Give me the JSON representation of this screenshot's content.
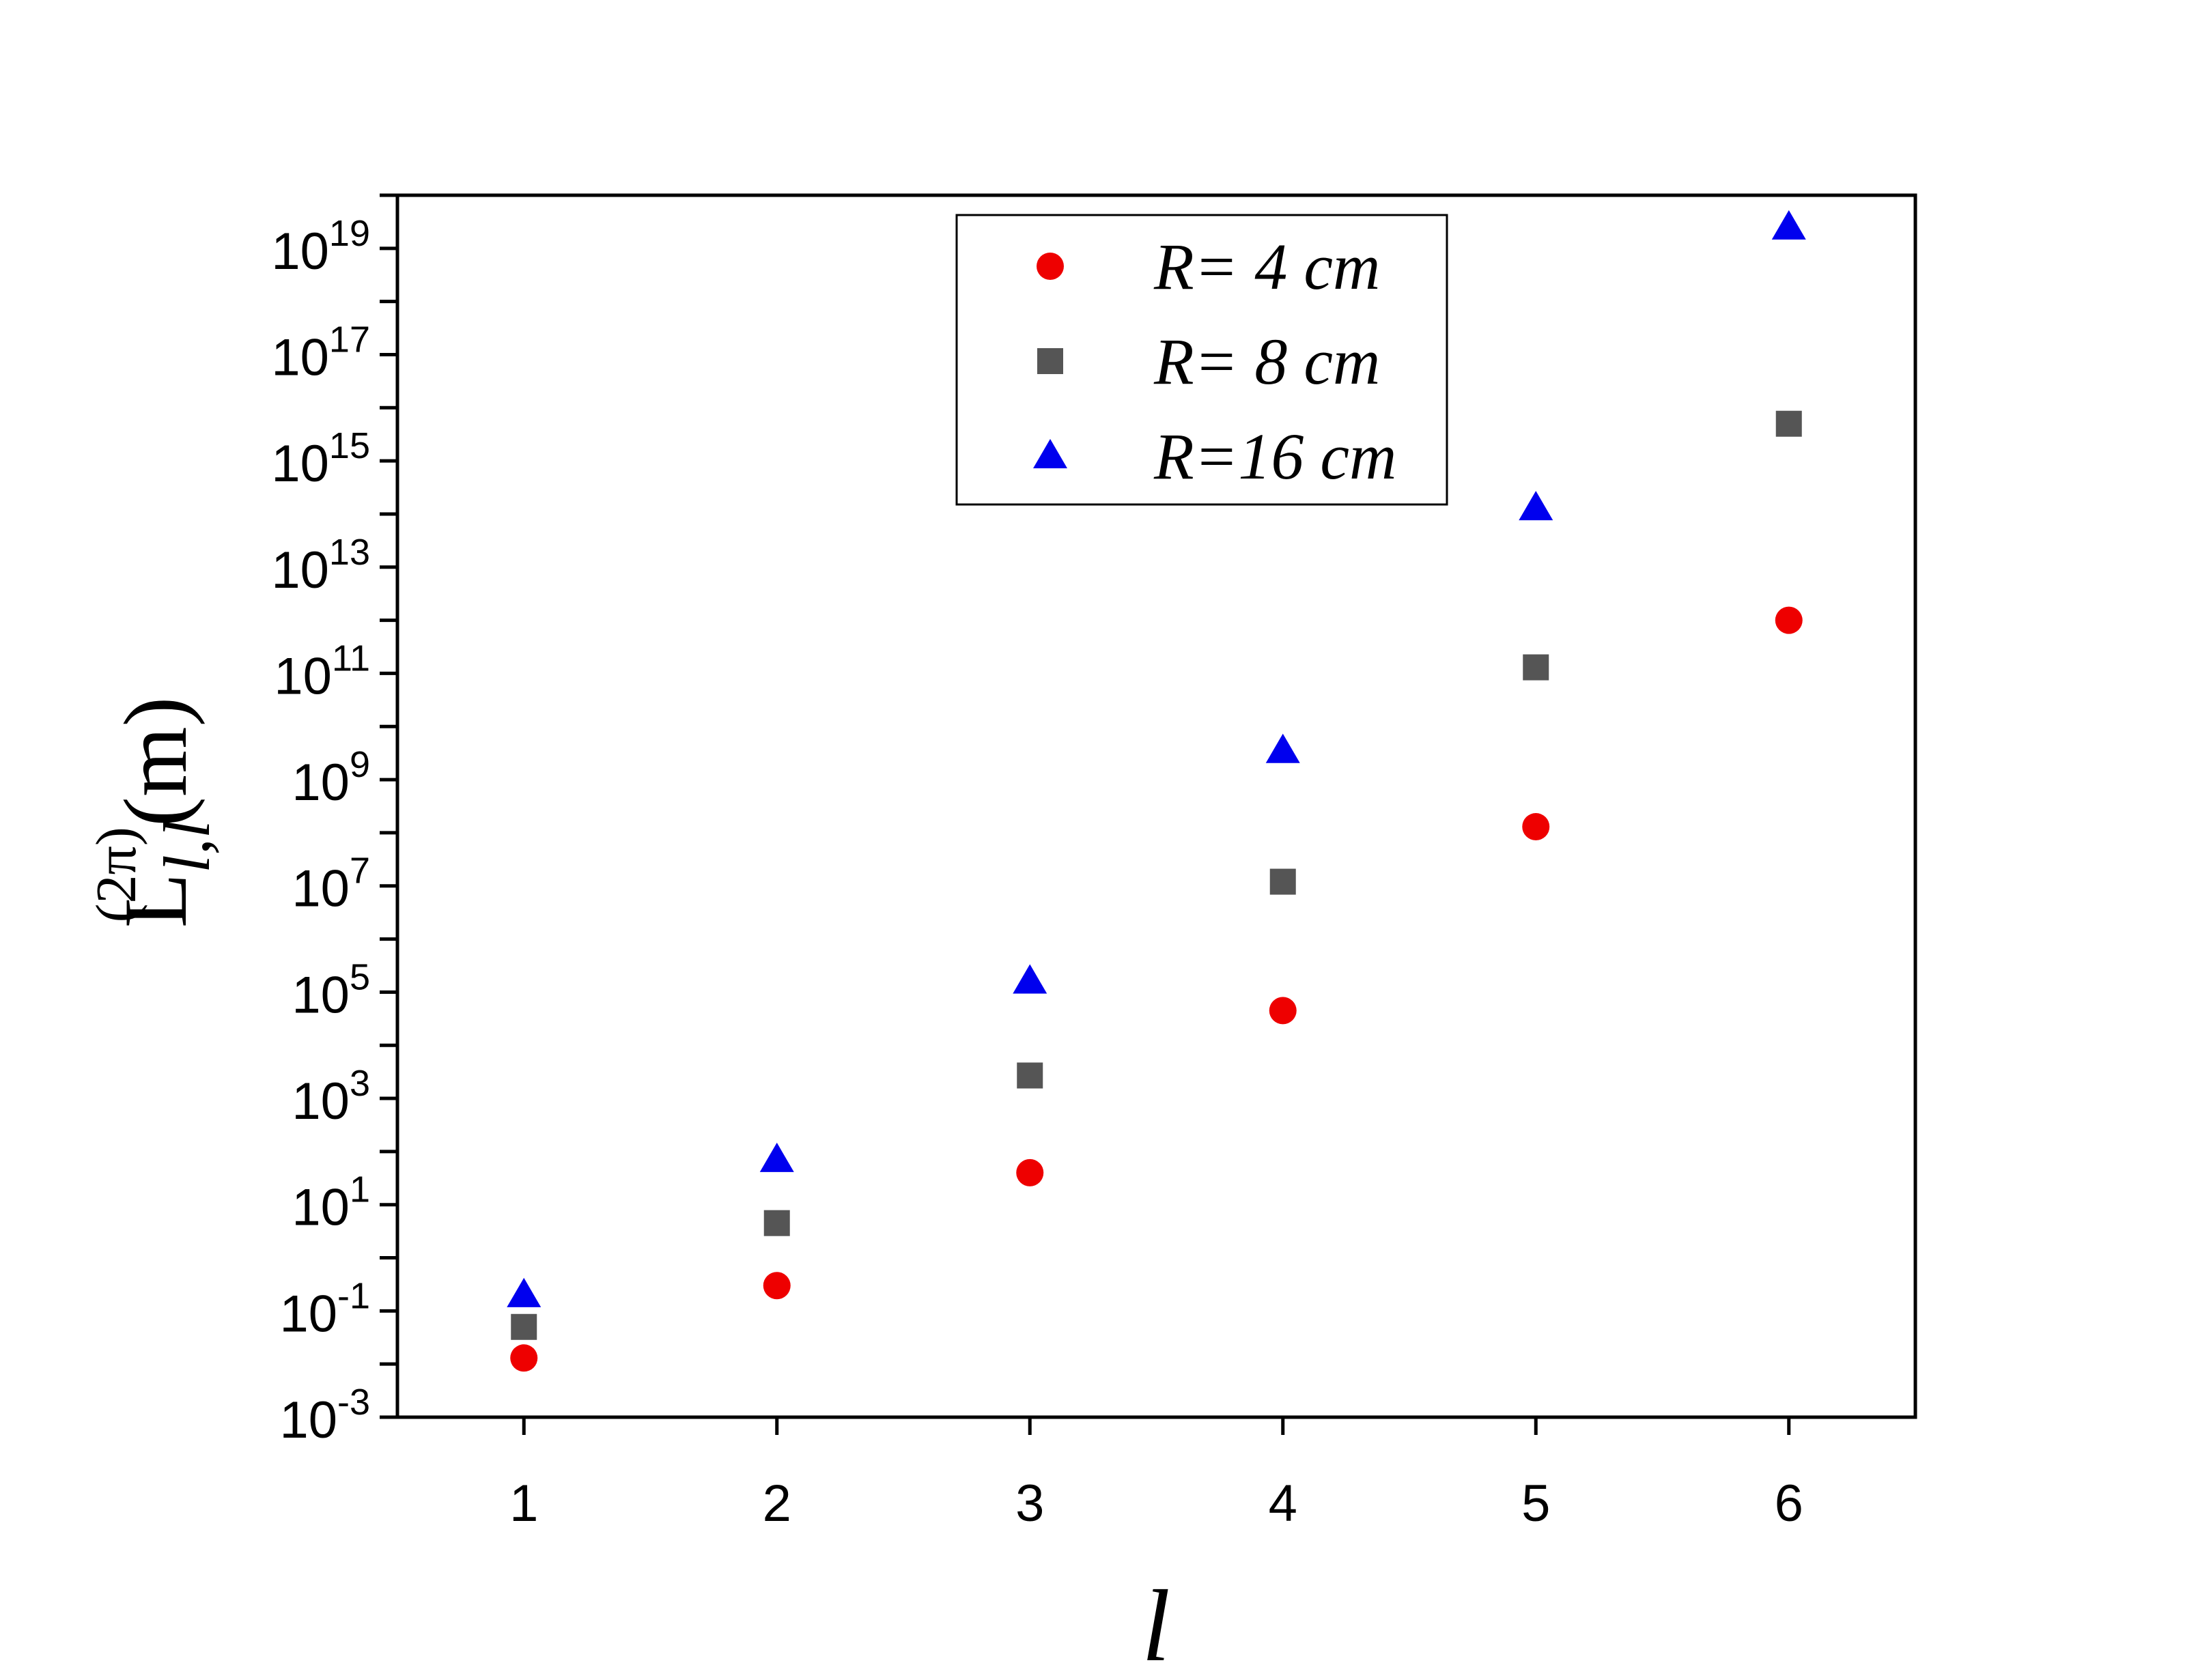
{
  "chart_data": {
    "type": "scatter",
    "title": "",
    "xlabel": "l",
    "ylabel": {
      "main": "L",
      "subscript": "l,l",
      "superscript": "(2π)",
      "unit": "(m)"
    },
    "x": [
      1,
      2,
      3,
      4,
      5,
      6
    ],
    "xlim": [
      0.5,
      6.5
    ],
    "ylim": [
      0.001,
      1e+20
    ],
    "yscale": "log",
    "xticks": [
      "1",
      "2",
      "3",
      "4",
      "5",
      "6"
    ],
    "yticks": [
      {
        "base": "10",
        "exp": "-3"
      },
      {
        "base": "10",
        "exp": "-1"
      },
      {
        "base": "10",
        "exp": "1"
      },
      {
        "base": "10",
        "exp": "3"
      },
      {
        "base": "10",
        "exp": "5"
      },
      {
        "base": "10",
        "exp": "7"
      },
      {
        "base": "10",
        "exp": "9"
      },
      {
        "base": "10",
        "exp": "11"
      },
      {
        "base": "10",
        "exp": "13"
      },
      {
        "base": "10",
        "exp": "15"
      },
      {
        "base": "10",
        "exp": "17"
      },
      {
        "base": "10",
        "exp": "19"
      }
    ],
    "grid": false,
    "legend_position": "top-right",
    "series": [
      {
        "name": "R= 4 cm",
        "marker": "circle",
        "color": "#ee0000",
        "values": [
          0.013,
          0.3,
          40,
          45000,
          130000000.0,
          1000000000000.0
        ]
      },
      {
        "name": "R= 8 cm",
        "marker": "square",
        "color": "#555555",
        "values": [
          0.05,
          4.5,
          2700,
          12000000.0,
          130000000000.0,
          5000000000000000.0
        ]
      },
      {
        "name": "R=16 cm",
        "marker": "triangle",
        "color": "#0000ee",
        "values": [
          0.2,
          70,
          160000,
          3500000000.0,
          130000000000000.0,
          2.5e+19
        ]
      }
    ]
  }
}
